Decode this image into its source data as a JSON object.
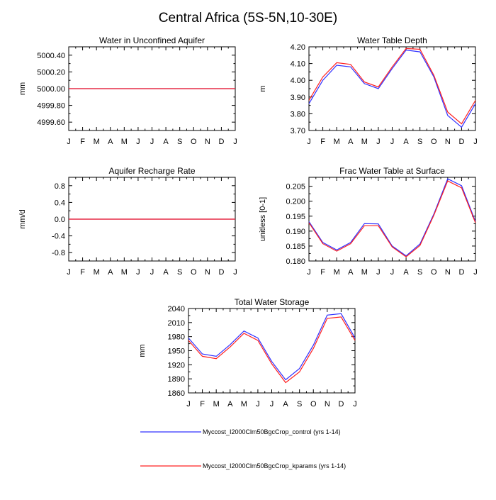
{
  "title": "Central Africa (5S-5N,10-30E)",
  "colors": {
    "control": "#3030ff",
    "kparams": "#ff2020"
  },
  "legend": [
    {
      "label": "Myccost_I2000Clm50BgcCrop_control (yrs 1-14)",
      "color": "#3030ff"
    },
    {
      "label": "Myccost_I2000Clm50BgcCrop_kparams (yrs 1-14)",
      "color": "#ff2020"
    }
  ],
  "chart_data": [
    {
      "type": "line",
      "title": "Water in Unconfined Aquifer",
      "ylabel": "mm",
      "categories": [
        "J",
        "F",
        "M",
        "A",
        "M",
        "J",
        "J",
        "A",
        "S",
        "O",
        "N",
        "D",
        "J"
      ],
      "ylim": [
        4999.5,
        5000.5
      ],
      "yticks": [
        4999.6,
        4999.8,
        5000.0,
        5000.2,
        5000.4
      ],
      "ytick_labels": [
        "4999.60",
        "4999.80",
        "5000.00",
        "5000.20",
        "5000.40"
      ],
      "series": [
        {
          "name": "Myccost_I2000Clm50BgcCrop_control (yrs 1-14)",
          "color": "#3030ff",
          "values": [
            5000,
            5000,
            5000,
            5000,
            5000,
            5000,
            5000,
            5000,
            5000,
            5000,
            5000,
            5000,
            5000
          ]
        },
        {
          "name": "Myccost_I2000Clm50BgcCrop_kparams (yrs 1-14)",
          "color": "#ff2020",
          "values": [
            5000,
            5000,
            5000,
            5000,
            5000,
            5000,
            5000,
            5000,
            5000,
            5000,
            5000,
            5000,
            5000
          ]
        }
      ]
    },
    {
      "type": "line",
      "title": "Water Table Depth",
      "ylabel": "m",
      "categories": [
        "J",
        "F",
        "M",
        "A",
        "M",
        "J",
        "J",
        "A",
        "S",
        "O",
        "N",
        "D",
        "J"
      ],
      "ylim": [
        3.7,
        4.2
      ],
      "yticks": [
        3.7,
        3.8,
        3.9,
        4.0,
        4.1,
        4.2
      ],
      "ytick_labels": [
        "3.70",
        "3.80",
        "3.90",
        "4.00",
        "4.10",
        "4.20"
      ],
      "series": [
        {
          "name": "Myccost_I2000Clm50BgcCrop_control (yrs 1-14)",
          "color": "#3030ff",
          "values": [
            3.86,
            4.0,
            4.09,
            4.08,
            3.98,
            3.95,
            4.07,
            4.18,
            4.17,
            4.02,
            3.79,
            3.72,
            3.86
          ]
        },
        {
          "name": "Myccost_I2000Clm50BgcCrop_kparams (yrs 1-14)",
          "color": "#ff2020",
          "values": [
            3.88,
            4.02,
            4.105,
            4.095,
            3.99,
            3.96,
            4.08,
            4.19,
            4.185,
            4.03,
            3.81,
            3.74,
            3.88
          ]
        }
      ]
    },
    {
      "type": "line",
      "title": "Aquifer Recharge Rate",
      "ylabel": "mm/d",
      "categories": [
        "J",
        "F",
        "M",
        "A",
        "M",
        "J",
        "J",
        "A",
        "S",
        "O",
        "N",
        "D",
        "J"
      ],
      "ylim": [
        -1.0,
        1.0
      ],
      "yticks": [
        -0.8,
        -0.4,
        0.0,
        0.4,
        0.8
      ],
      "ytick_labels": [
        "-0.8",
        "-0.4",
        "0.0",
        "0.4",
        "0.8"
      ],
      "series": [
        {
          "name": "Myccost_I2000Clm50BgcCrop_control (yrs 1-14)",
          "color": "#3030ff",
          "values": [
            0,
            0,
            0,
            0,
            0,
            0,
            0,
            0,
            0,
            0,
            0,
            0,
            0
          ]
        },
        {
          "name": "Myccost_I2000Clm50BgcCrop_kparams (yrs 1-14)",
          "color": "#ff2020",
          "values": [
            0,
            0,
            0,
            0,
            0,
            0,
            0,
            0,
            0,
            0,
            0,
            0,
            0
          ]
        }
      ]
    },
    {
      "type": "line",
      "title": "Frac Water Table at Surface",
      "ylabel": "unitless [0-1]",
      "categories": [
        "J",
        "F",
        "M",
        "A",
        "M",
        "J",
        "J",
        "A",
        "S",
        "O",
        "N",
        "D",
        "J"
      ],
      "ylim": [
        0.18,
        0.208
      ],
      "yticks": [
        0.18,
        0.185,
        0.19,
        0.195,
        0.2,
        0.205
      ],
      "ytick_labels": [
        "0.180",
        "0.185",
        "0.190",
        "0.195",
        "0.200",
        "0.205"
      ],
      "series": [
        {
          "name": "Myccost_I2000Clm50BgcCrop_control (yrs 1-14)",
          "color": "#3030ff",
          "values": [
            0.1932,
            0.1862,
            0.1837,
            0.1862,
            0.1925,
            0.1924,
            0.185,
            0.1817,
            0.1857,
            0.1957,
            0.2075,
            0.2052,
            0.1932
          ]
        },
        {
          "name": "Myccost_I2000Clm50BgcCrop_kparams (yrs 1-14)",
          "color": "#ff2020",
          "values": [
            0.1928,
            0.1858,
            0.1833,
            0.1858,
            0.1918,
            0.1918,
            0.1847,
            0.1814,
            0.1852,
            0.1953,
            0.2068,
            0.2045,
            0.1928
          ]
        }
      ]
    },
    {
      "type": "line",
      "title": "Total Water Storage",
      "ylabel": "mm",
      "categories": [
        "J",
        "F",
        "M",
        "A",
        "M",
        "J",
        "J",
        "A",
        "S",
        "O",
        "N",
        "D",
        "J"
      ],
      "ylim": [
        1860,
        2040
      ],
      "yticks": [
        1860,
        1890,
        1920,
        1950,
        1980,
        2010,
        2040
      ],
      "ytick_labels": [
        "1860",
        "1890",
        "1920",
        "1950",
        "1980",
        "2010",
        "2040"
      ],
      "series": [
        {
          "name": "Myccost_I2000Clm50BgcCrop_control (yrs 1-14)",
          "color": "#3030ff",
          "values": [
            1977,
            1943,
            1938,
            1963,
            1992,
            1977,
            1927,
            1888,
            1912,
            1962,
            2026,
            2029,
            1977
          ]
        },
        {
          "name": "Myccost_I2000Clm50BgcCrop_kparams (yrs 1-14)",
          "color": "#ff2020",
          "values": [
            1972,
            1938,
            1933,
            1958,
            1987,
            1972,
            1922,
            1882,
            1905,
            1955,
            2019,
            2022,
            1972
          ]
        }
      ]
    }
  ]
}
